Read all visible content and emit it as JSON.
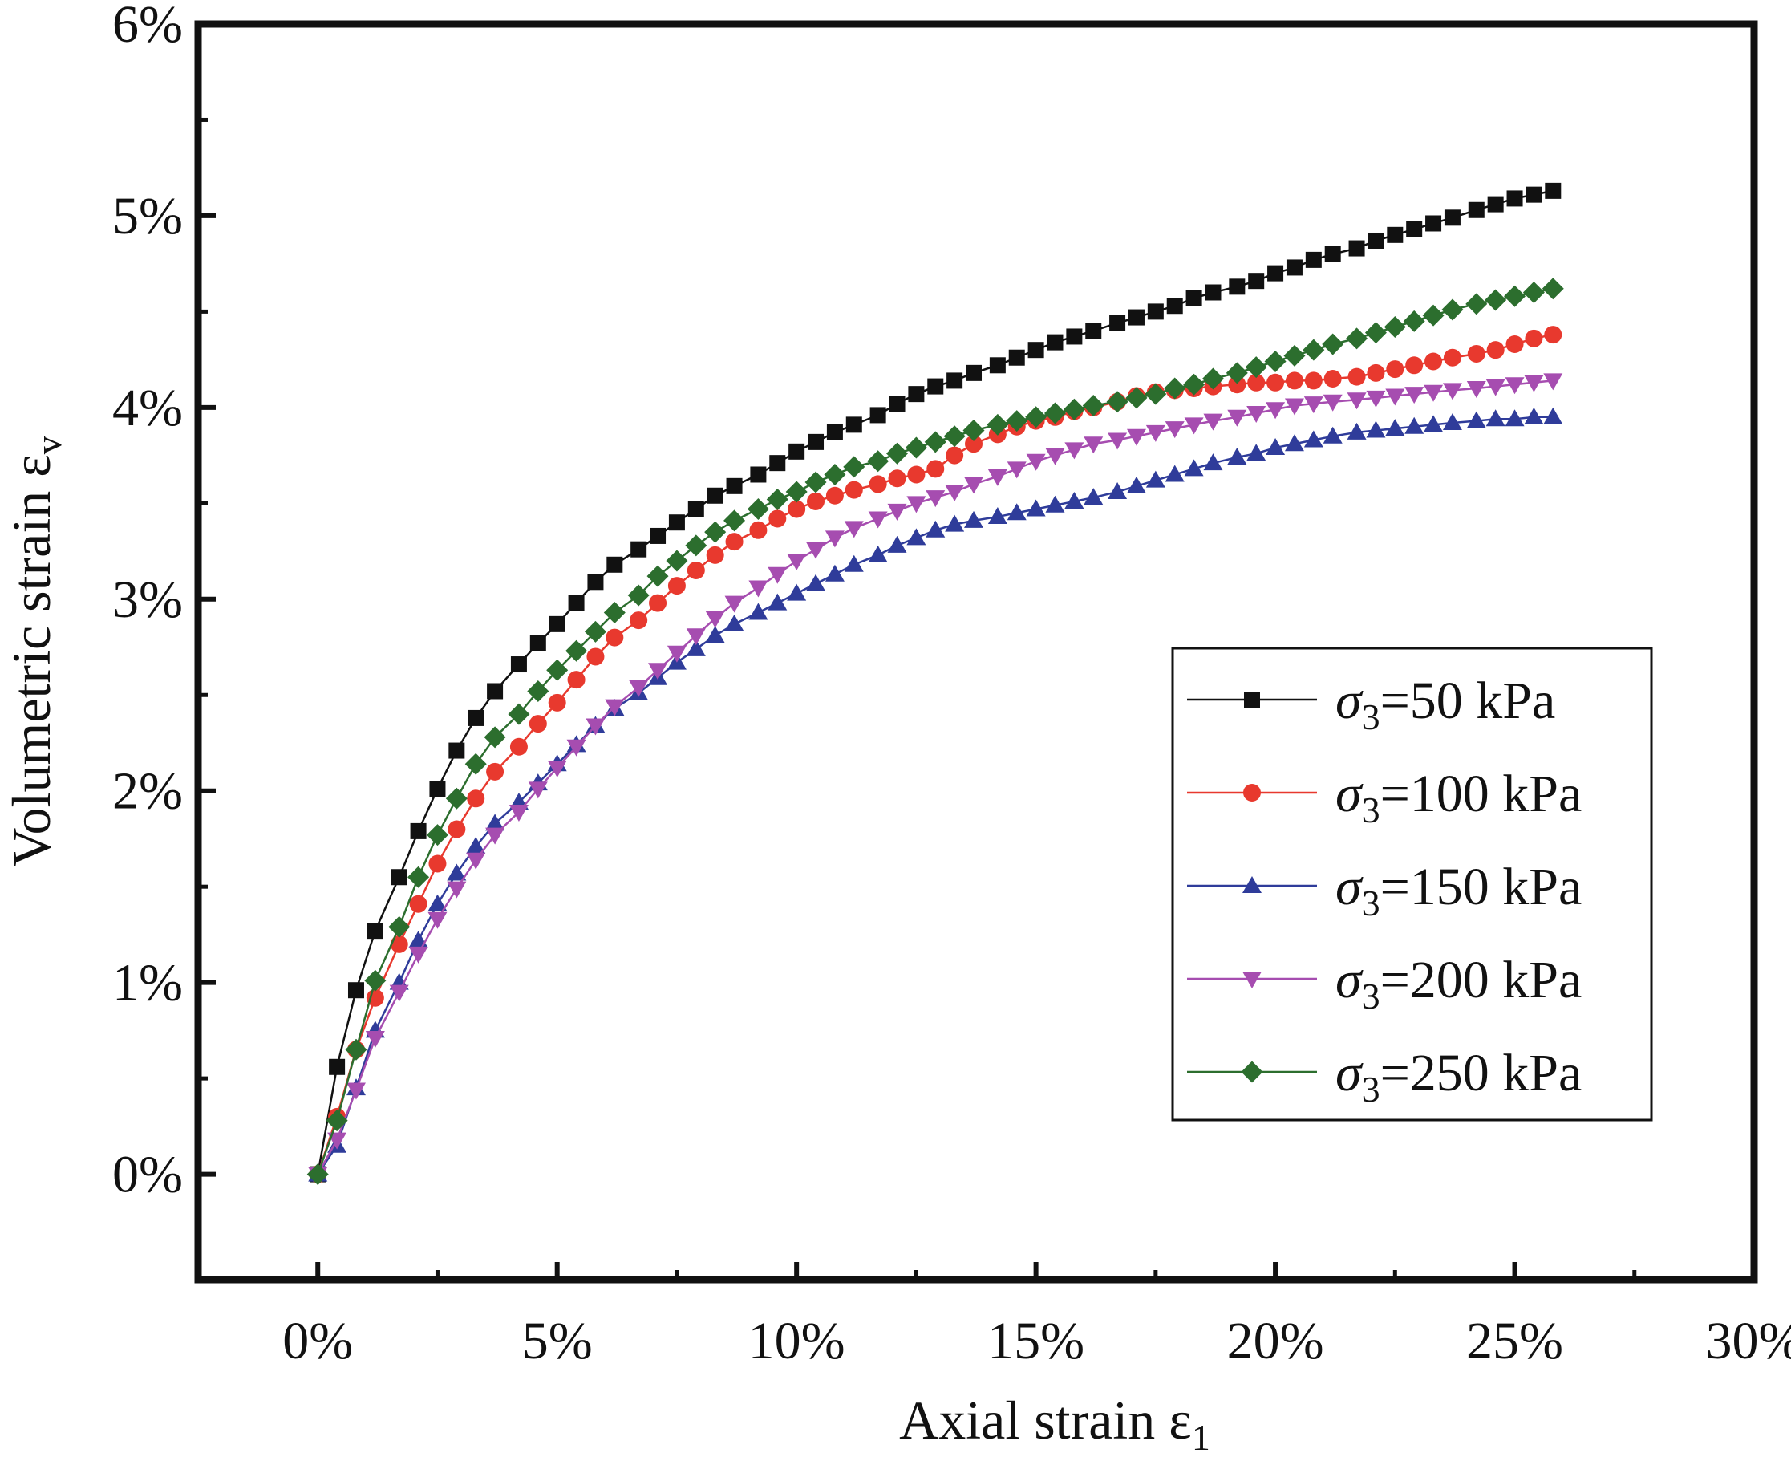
{
  "chart_data": {
    "type": "line",
    "xlabel": "Axial strain ε",
    "xlabel_sub": "1",
    "ylabel": "Volumetric strain ε",
    "ylabel_sub": "v",
    "xlim": [
      -0.025,
      0.3
    ],
    "ylim": [
      -0.0055,
      0.06
    ],
    "x_ticks": [
      0,
      0.05,
      0.1,
      0.15,
      0.2,
      0.25,
      0.3
    ],
    "x_tick_labels": [
      "0%",
      "5%",
      "10%",
      "15%",
      "20%",
      "25%",
      "30%"
    ],
    "y_ticks": [
      0,
      0.01,
      0.02,
      0.03,
      0.04,
      0.05,
      0.06
    ],
    "y_tick_labels": [
      "0%",
      "1%",
      "2%",
      "3%",
      "4%",
      "5%",
      "6%"
    ],
    "grid": false,
    "legend_position": "center-right",
    "series": [
      {
        "name": "σ3=50 kPa",
        "legend_symbol": "σ",
        "legend_sub": "3",
        "legend_rest": "=50 kPa",
        "color": "#111111",
        "marker": "square",
        "x": [
          0,
          0.004,
          0.008,
          0.012,
          0.017,
          0.021,
          0.025,
          0.029,
          0.033,
          0.037,
          0.042,
          0.046,
          0.05,
          0.054,
          0.058,
          0.062,
          0.067,
          0.071,
          0.075,
          0.079,
          0.083,
          0.087,
          0.092,
          0.096,
          0.1,
          0.104,
          0.108,
          0.112,
          0.117,
          0.121,
          0.125,
          0.129,
          0.133,
          0.137,
          0.142,
          0.146,
          0.15,
          0.154,
          0.158,
          0.162,
          0.167,
          0.171,
          0.175,
          0.179,
          0.183,
          0.187,
          0.192,
          0.196,
          0.2,
          0.204,
          0.208,
          0.212,
          0.217,
          0.221,
          0.225,
          0.229,
          0.233,
          0.237,
          0.242,
          0.246,
          0.25,
          0.254,
          0.258
        ],
        "y": [
          0,
          0.0056,
          0.0096,
          0.0127,
          0.0155,
          0.0179,
          0.0201,
          0.0221,
          0.0238,
          0.0252,
          0.0266,
          0.0277,
          0.0287,
          0.0298,
          0.0309,
          0.0318,
          0.0326,
          0.0333,
          0.034,
          0.0347,
          0.0354,
          0.0359,
          0.0365,
          0.0371,
          0.0377,
          0.0382,
          0.0387,
          0.0391,
          0.0396,
          0.0402,
          0.0407,
          0.0411,
          0.0414,
          0.0418,
          0.0422,
          0.0426,
          0.043,
          0.0434,
          0.0437,
          0.044,
          0.0444,
          0.0447,
          0.045,
          0.0453,
          0.0457,
          0.046,
          0.0463,
          0.0466,
          0.047,
          0.0473,
          0.0477,
          0.048,
          0.0483,
          0.0487,
          0.049,
          0.0493,
          0.0496,
          0.0499,
          0.0503,
          0.0506,
          0.0509,
          0.0511,
          0.0513
        ]
      },
      {
        "name": "σ3=100 kPa",
        "legend_symbol": "σ",
        "legend_sub": "3",
        "legend_rest": "=100 kPa",
        "color": "#e8392e",
        "marker": "circle",
        "x": [
          0,
          0.004,
          0.008,
          0.012,
          0.017,
          0.021,
          0.025,
          0.029,
          0.033,
          0.037,
          0.042,
          0.046,
          0.05,
          0.054,
          0.058,
          0.062,
          0.067,
          0.071,
          0.075,
          0.079,
          0.083,
          0.087,
          0.092,
          0.096,
          0.1,
          0.104,
          0.108,
          0.112,
          0.117,
          0.121,
          0.125,
          0.129,
          0.133,
          0.137,
          0.142,
          0.146,
          0.15,
          0.154,
          0.158,
          0.162,
          0.167,
          0.171,
          0.175,
          0.179,
          0.183,
          0.187,
          0.192,
          0.196,
          0.2,
          0.204,
          0.208,
          0.212,
          0.217,
          0.221,
          0.225,
          0.229,
          0.233,
          0.237,
          0.242,
          0.246,
          0.25,
          0.254,
          0.258
        ],
        "y": [
          0,
          0.003,
          0.0065,
          0.0092,
          0.012,
          0.0141,
          0.0162,
          0.018,
          0.0196,
          0.021,
          0.0223,
          0.0235,
          0.0246,
          0.0258,
          0.027,
          0.028,
          0.0289,
          0.0298,
          0.0307,
          0.0315,
          0.0323,
          0.033,
          0.0336,
          0.0342,
          0.0347,
          0.0351,
          0.0354,
          0.0357,
          0.036,
          0.0363,
          0.0365,
          0.0368,
          0.0375,
          0.0381,
          0.0386,
          0.039,
          0.0393,
          0.0395,
          0.0398,
          0.04,
          0.0403,
          0.0406,
          0.0408,
          0.0409,
          0.041,
          0.0411,
          0.0412,
          0.0413,
          0.0413,
          0.0414,
          0.0414,
          0.0415,
          0.0416,
          0.0418,
          0.042,
          0.0422,
          0.0424,
          0.0426,
          0.0428,
          0.043,
          0.0433,
          0.0436,
          0.0438
        ]
      },
      {
        "name": "σ3=150 kPa",
        "legend_symbol": "σ",
        "legend_sub": "3",
        "legend_rest": "=150 kPa",
        "color": "#2f3c9a",
        "marker": "triangle-up",
        "x": [
          0,
          0.004,
          0.008,
          0.012,
          0.017,
          0.021,
          0.025,
          0.029,
          0.033,
          0.037,
          0.042,
          0.046,
          0.05,
          0.054,
          0.058,
          0.062,
          0.067,
          0.071,
          0.075,
          0.079,
          0.083,
          0.087,
          0.092,
          0.096,
          0.1,
          0.104,
          0.108,
          0.112,
          0.117,
          0.121,
          0.125,
          0.129,
          0.133,
          0.137,
          0.142,
          0.146,
          0.15,
          0.154,
          0.158,
          0.162,
          0.167,
          0.171,
          0.175,
          0.179,
          0.183,
          0.187,
          0.192,
          0.196,
          0.2,
          0.204,
          0.208,
          0.212,
          0.217,
          0.221,
          0.225,
          0.229,
          0.233,
          0.237,
          0.242,
          0.246,
          0.25,
          0.254,
          0.258
        ],
        "y": [
          0,
          0.0015,
          0.0045,
          0.0075,
          0.01,
          0.0122,
          0.0141,
          0.0157,
          0.0171,
          0.0183,
          0.0194,
          0.0204,
          0.0214,
          0.0224,
          0.0234,
          0.0243,
          0.0251,
          0.0259,
          0.0267,
          0.0274,
          0.0281,
          0.0287,
          0.0293,
          0.0298,
          0.0303,
          0.0308,
          0.0313,
          0.0318,
          0.0323,
          0.0328,
          0.0332,
          0.0336,
          0.0339,
          0.0341,
          0.0343,
          0.0345,
          0.0347,
          0.0349,
          0.0351,
          0.0353,
          0.0356,
          0.0359,
          0.0362,
          0.0365,
          0.0368,
          0.0371,
          0.0374,
          0.0376,
          0.0379,
          0.0381,
          0.0383,
          0.0385,
          0.0387,
          0.0388,
          0.0389,
          0.039,
          0.0391,
          0.0392,
          0.0393,
          0.0394,
          0.0394,
          0.0395,
          0.0395
        ]
      },
      {
        "name": "σ3=200 kPa",
        "legend_symbol": "σ",
        "legend_sub": "3",
        "legend_rest": "=200 kPa",
        "color": "#a64db0",
        "marker": "triangle-down",
        "x": [
          0,
          0.004,
          0.008,
          0.012,
          0.017,
          0.021,
          0.025,
          0.029,
          0.033,
          0.037,
          0.042,
          0.046,
          0.05,
          0.054,
          0.058,
          0.062,
          0.067,
          0.071,
          0.075,
          0.079,
          0.083,
          0.087,
          0.092,
          0.096,
          0.1,
          0.104,
          0.108,
          0.112,
          0.117,
          0.121,
          0.125,
          0.129,
          0.133,
          0.137,
          0.142,
          0.146,
          0.15,
          0.154,
          0.158,
          0.162,
          0.167,
          0.171,
          0.175,
          0.179,
          0.183,
          0.187,
          0.192,
          0.196,
          0.2,
          0.204,
          0.208,
          0.212,
          0.217,
          0.221,
          0.225,
          0.229,
          0.233,
          0.237,
          0.242,
          0.246,
          0.25,
          0.254,
          0.258
        ],
        "y": [
          0,
          0.0018,
          0.0044,
          0.0071,
          0.0095,
          0.0115,
          0.0133,
          0.0149,
          0.0164,
          0.0177,
          0.0189,
          0.0201,
          0.0212,
          0.0223,
          0.0234,
          0.0244,
          0.0254,
          0.0263,
          0.0272,
          0.0281,
          0.029,
          0.0298,
          0.0306,
          0.0313,
          0.032,
          0.0326,
          0.0332,
          0.0337,
          0.0342,
          0.0346,
          0.035,
          0.0353,
          0.0356,
          0.036,
          0.0364,
          0.0368,
          0.0372,
          0.0375,
          0.0378,
          0.0381,
          0.0383,
          0.0385,
          0.0387,
          0.0389,
          0.0391,
          0.0393,
          0.0395,
          0.0397,
          0.0399,
          0.0401,
          0.0402,
          0.0403,
          0.0404,
          0.0405,
          0.0406,
          0.0407,
          0.0408,
          0.0409,
          0.041,
          0.0411,
          0.0412,
          0.0413,
          0.0414
        ]
      },
      {
        "name": "σ3=250 kPa",
        "legend_symbol": "σ",
        "legend_sub": "3",
        "legend_rest": "=250 kPa",
        "color": "#2c6e2e",
        "marker": "diamond",
        "x": [
          0,
          0.004,
          0.008,
          0.012,
          0.017,
          0.021,
          0.025,
          0.029,
          0.033,
          0.037,
          0.042,
          0.046,
          0.05,
          0.054,
          0.058,
          0.062,
          0.067,
          0.071,
          0.075,
          0.079,
          0.083,
          0.087,
          0.092,
          0.096,
          0.1,
          0.104,
          0.108,
          0.112,
          0.117,
          0.121,
          0.125,
          0.129,
          0.133,
          0.137,
          0.142,
          0.146,
          0.15,
          0.154,
          0.158,
          0.162,
          0.167,
          0.171,
          0.175,
          0.179,
          0.183,
          0.187,
          0.192,
          0.196,
          0.2,
          0.204,
          0.208,
          0.212,
          0.217,
          0.221,
          0.225,
          0.229,
          0.233,
          0.237,
          0.242,
          0.246,
          0.25,
          0.254,
          0.258
        ],
        "y": [
          0,
          0.0028,
          0.0065,
          0.0101,
          0.0129,
          0.0155,
          0.0177,
          0.0196,
          0.0214,
          0.0228,
          0.024,
          0.0252,
          0.0263,
          0.0273,
          0.0283,
          0.0293,
          0.0302,
          0.0312,
          0.032,
          0.0328,
          0.0335,
          0.0341,
          0.0347,
          0.0352,
          0.0356,
          0.0361,
          0.0365,
          0.0369,
          0.0372,
          0.0376,
          0.0379,
          0.0382,
          0.0385,
          0.0388,
          0.0391,
          0.0393,
          0.0395,
          0.0397,
          0.0399,
          0.0401,
          0.0403,
          0.0405,
          0.0407,
          0.041,
          0.0412,
          0.0415,
          0.0418,
          0.0421,
          0.0424,
          0.0427,
          0.043,
          0.0433,
          0.0436,
          0.0439,
          0.0442,
          0.0445,
          0.0448,
          0.0451,
          0.0454,
          0.0456,
          0.0458,
          0.046,
          0.0462
        ]
      }
    ]
  }
}
